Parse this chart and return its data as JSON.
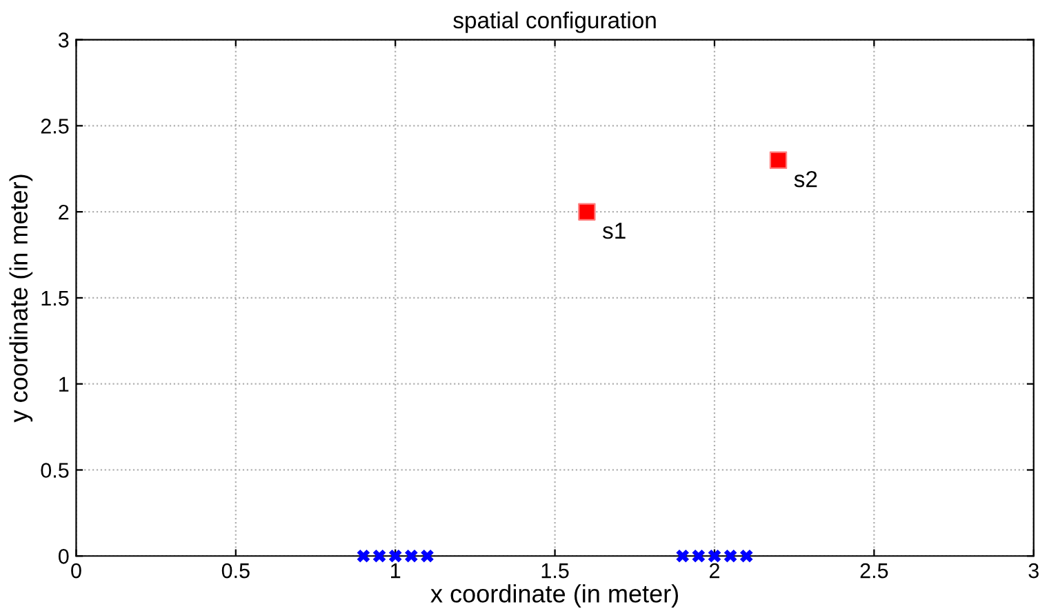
{
  "chart_data": {
    "type": "scatter",
    "title": "spatial configuration",
    "xlabel": "x coordinate (in meter)",
    "ylabel": "y coordinate (in meter)",
    "series": [
      {
        "color": "#0000ff",
        "marker": "cross",
        "x": [
          0.9,
          0.95,
          1.0,
          1.05,
          1.1,
          1.9,
          1.95,
          2.0,
          2.05,
          2.1
        ],
        "values": [
          0,
          0,
          0,
          0,
          0,
          0,
          0,
          0,
          0,
          0
        ]
      },
      {
        "color": "#ff0000",
        "marker": "square",
        "x": [
          1.6,
          2.2
        ],
        "values": [
          2.0,
          2.3
        ]
      }
    ],
    "annotations": [
      {
        "text": "s1",
        "x": 1.6,
        "y": 2.0
      },
      {
        "text": "s2",
        "x": 2.2,
        "y": 2.3
      }
    ],
    "xlim": [
      0,
      3
    ],
    "ylim": [
      0,
      3
    ],
    "xticks": [
      0,
      0.5,
      1,
      1.5,
      2,
      2.5,
      3
    ],
    "yticks": [
      0,
      0.5,
      1,
      1.5,
      2,
      2.5,
      3
    ],
    "grid": true,
    "legend": false
  }
}
